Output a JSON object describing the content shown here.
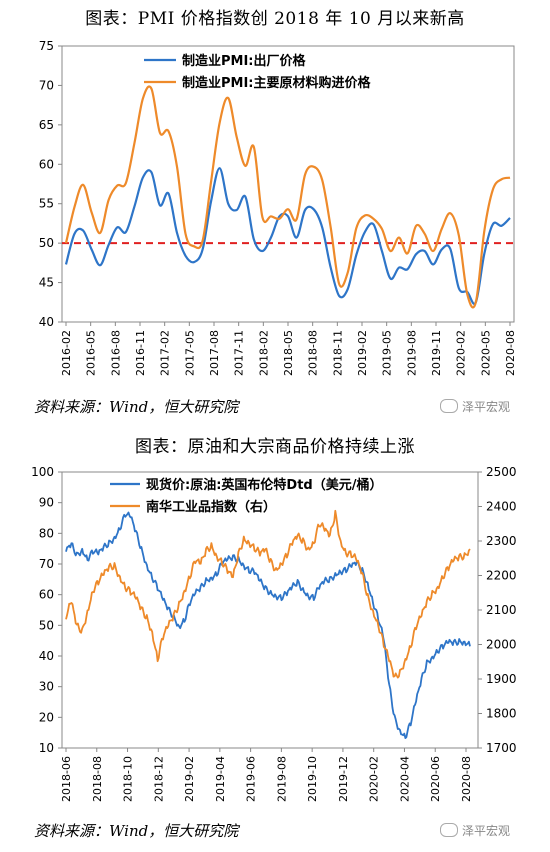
{
  "page": {
    "chart1_title": "图表：PMI 价格指数创 2018 年 10 月以来新高",
    "chart1_source": "资料来源：Wind，恒大研究院",
    "chart2_title": "图表：原油和大宗商品价格持续上涨",
    "chart2_source": "资料来源：Wind，恒大研究院",
    "watermark": "泽平宏观"
  },
  "colors": {
    "blue": "#2E75C8",
    "orange": "#EE8A2A",
    "ref": "#E02020"
  },
  "chart_data": [
    {
      "type": "line",
      "title": "图表：PMI 价格指数创 2018 年 10 月以来新高",
      "ylim": [
        40,
        75
      ],
      "yticks": [
        "40",
        "45",
        "50",
        "55",
        "60",
        "65",
        "70",
        "75"
      ],
      "xticks": [
        "2016-02",
        "2016-05",
        "2016-08",
        "2016-11",
        "2017-02",
        "2017-05",
        "2017-08",
        "2017-11",
        "2018-02",
        "2018-05",
        "2018-08",
        "2018-11",
        "2019-02",
        "2019-05",
        "2019-08",
        "2019-11",
        "2020-02",
        "2020-05",
        "2020-08"
      ],
      "reference_line": 50,
      "legend": "top-left",
      "series": [
        {
          "name": "制造业PMI:出厂价格",
          "color": "#2E75C8",
          "values": [
            47.3,
            51.2,
            51.6,
            49.2,
            47.2,
            49.8,
            52.0,
            51.4,
            54.6,
            58.3,
            59.0,
            54.8,
            56.3,
            51.3,
            48.4,
            47.6,
            49.2,
            55.4,
            59.5,
            55.0,
            54.2,
            55.9,
            50.5,
            49.0,
            50.7,
            53.4,
            53.4,
            50.7,
            54.2,
            54.3,
            52.0,
            46.9,
            43.3,
            44.2,
            48.5,
            51.4,
            52.4,
            49.0,
            45.5,
            46.9,
            46.7,
            48.6,
            49.0,
            47.3,
            49.2,
            49.3,
            44.3,
            43.8,
            42.5,
            48.7,
            52.4,
            52.2,
            53.2
          ]
        },
        {
          "name": "制造业PMI:主要原材料购进价格",
          "color": "#EE8A2A",
          "values": [
            50.0,
            54.6,
            57.4,
            53.9,
            51.3,
            55.5,
            57.3,
            57.6,
            62.6,
            68.3,
            69.6,
            64.0,
            64.2,
            59.7,
            51.2,
            49.6,
            50.3,
            57.9,
            65.3,
            68.4,
            63.4,
            59.8,
            62.2,
            53.3,
            53.4,
            53.1,
            54.3,
            53.0,
            58.7,
            59.7,
            58.0,
            52.0,
            44.8,
            46.3,
            51.9,
            53.5,
            53.1,
            51.8,
            49.0,
            50.7,
            48.7,
            52.2,
            51.2,
            49.0,
            51.8,
            53.8,
            51.0,
            43.5,
            42.5,
            51.6,
            56.8,
            58.1,
            58.3
          ]
        }
      ]
    },
    {
      "type": "line",
      "title": "图表：原油和大宗商品价格持续上涨",
      "ylim_left": [
        10,
        100
      ],
      "ylim_right": [
        1700,
        2500
      ],
      "yticks_left": [
        "10",
        "20",
        "30",
        "40",
        "50",
        "60",
        "70",
        "80",
        "90",
        "100"
      ],
      "yticks_right": [
        "1700",
        "1800",
        "1900",
        "2000",
        "2100",
        "2200",
        "2300",
        "2400",
        "2500"
      ],
      "xticks": [
        "2018-06",
        "2018-08",
        "2018-10",
        "2018-12",
        "2019-02",
        "2019-04",
        "2019-06",
        "2019-08",
        "2019-10",
        "2019-12",
        "2020-02",
        "2020-04",
        "2020-06",
        "2020-08"
      ],
      "legend": "top-left",
      "series": [
        {
          "name": "现货价:原油:英国布伦特Dtd（美元/桶）",
          "axis": "left",
          "color": "#2E75C8",
          "values": [
            74,
            76,
            73,
            75,
            72,
            74,
            73,
            75,
            77,
            79,
            82,
            86,
            85,
            80,
            75,
            70,
            66,
            62,
            58,
            55,
            53,
            50,
            52,
            57,
            60,
            62,
            65,
            66,
            67,
            70,
            71,
            72,
            72,
            70,
            68,
            67,
            64,
            62,
            61,
            60,
            59,
            60,
            62,
            64,
            62,
            60,
            59,
            62,
            64,
            65,
            67,
            68,
            68,
            69,
            70,
            68,
            64,
            58,
            52,
            45,
            30,
            20,
            16,
            14,
            18,
            25,
            32,
            38,
            40,
            42,
            43,
            44,
            44,
            45,
            45,
            44
          ]
        },
        {
          "name": "南华工业品指数（右）",
          "axis": "right",
          "color": "#EE8A2A",
          "values": [
            2080,
            2120,
            2050,
            2040,
            2100,
            2160,
            2180,
            2200,
            2220,
            2230,
            2200,
            2170,
            2150,
            2130,
            2100,
            2080,
            2040,
            1960,
            2020,
            2050,
            2080,
            2120,
            2160,
            2200,
            2240,
            2230,
            2270,
            2290,
            2260,
            2240,
            2210,
            2190,
            2260,
            2310,
            2300,
            2280,
            2260,
            2270,
            2240,
            2220,
            2240,
            2260,
            2290,
            2310,
            2300,
            2280,
            2300,
            2350,
            2330,
            2310,
            2380,
            2300,
            2270,
            2260,
            2240,
            2200,
            2140,
            2100,
            2060,
            2000,
            1950,
            1900,
            1920,
            1960,
            2000,
            2050,
            2080,
            2120,
            2150,
            2170,
            2200,
            2220,
            2240,
            2250,
            2260,
            2280
          ]
        }
      ]
    }
  ]
}
